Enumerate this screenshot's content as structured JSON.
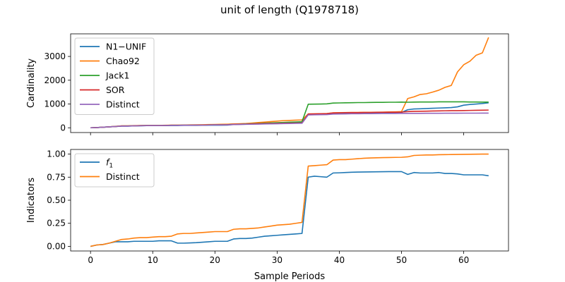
{
  "figure": {
    "suptitle": "unit of length (Q1978718)"
  },
  "colors": {
    "blue": "#1f77b4",
    "orange": "#ff7f0e",
    "green": "#2ca02c",
    "red": "#d62728",
    "purple": "#9467bd"
  },
  "chart_data": [
    {
      "type": "line",
      "title": "",
      "xlabel": "",
      "ylabel": "Cardinality",
      "xlim": [
        -3.2,
        67.2
      ],
      "ylim": [
        -200,
        3950
      ],
      "xticks": [
        0,
        10,
        20,
        30,
        40,
        50,
        60
      ],
      "xtick_labels_visible": false,
      "yticks": [
        0,
        1000,
        2000,
        3000
      ],
      "ytick_labels": [
        "0",
        "1000",
        "2000",
        "3000"
      ],
      "legend": "top-left",
      "grid": false,
      "x": [
        0,
        1,
        2,
        3,
        4,
        5,
        6,
        7,
        8,
        9,
        10,
        11,
        12,
        13,
        14,
        15,
        16,
        17,
        18,
        19,
        20,
        21,
        22,
        23,
        24,
        25,
        26,
        27,
        28,
        29,
        30,
        31,
        32,
        33,
        34,
        35,
        36,
        37,
        38,
        39,
        40,
        41,
        42,
        43,
        44,
        45,
        46,
        47,
        48,
        49,
        50,
        51,
        52,
        53,
        54,
        55,
        56,
        57,
        58,
        59,
        60,
        61,
        62,
        63,
        64
      ],
      "series": [
        {
          "name": "N1−UNIF",
          "color": "#1f77b4",
          "values": [
            0,
            10,
            25,
            40,
            55,
            70,
            70,
            80,
            85,
            90,
            90,
            90,
            92,
            95,
            95,
            100,
            100,
            100,
            105,
            110,
            110,
            110,
            112,
            140,
            145,
            150,
            160,
            170,
            180,
            190,
            200,
            210,
            220,
            230,
            240,
            560,
            565,
            570,
            575,
            610,
            615,
            620,
            625,
            625,
            630,
            630,
            635,
            635,
            640,
            640,
            645,
            760,
            790,
            800,
            810,
            820,
            830,
            840,
            850,
            880,
            950,
            980,
            1000,
            1020,
            1050
          ]
        },
        {
          "name": "Chao92",
          "color": "#ff7f0e",
          "values": [
            0,
            10,
            25,
            40,
            60,
            80,
            80,
            90,
            95,
            100,
            100,
            100,
            105,
            110,
            110,
            115,
            120,
            125,
            130,
            135,
            140,
            145,
            150,
            160,
            170,
            180,
            200,
            220,
            240,
            260,
            280,
            300,
            310,
            320,
            330,
            580,
            585,
            590,
            600,
            630,
            635,
            640,
            645,
            645,
            650,
            650,
            655,
            660,
            665,
            670,
            680,
            1230,
            1300,
            1400,
            1430,
            1500,
            1580,
            1700,
            1780,
            2350,
            2650,
            2800,
            3050,
            3150,
            3800
          ]
        },
        {
          "name": "Jack1",
          "color": "#2ca02c",
          "values": [
            0,
            10,
            25,
            40,
            55,
            75,
            75,
            85,
            90,
            95,
            95,
            95,
            100,
            105,
            105,
            110,
            110,
            115,
            115,
            120,
            125,
            125,
            130,
            145,
            150,
            160,
            170,
            180,
            195,
            205,
            215,
            225,
            235,
            245,
            255,
            990,
            995,
            1000,
            1005,
            1040,
            1045,
            1050,
            1055,
            1060,
            1060,
            1065,
            1070,
            1070,
            1075,
            1075,
            1080,
            1075,
            1080,
            1085,
            1085,
            1085,
            1090,
            1090,
            1090,
            1090,
            1090,
            1085,
            1085,
            1080,
            1080
          ]
        },
        {
          "name": "SOR",
          "color": "#d62728",
          "values": [
            0,
            10,
            25,
            40,
            55,
            75,
            75,
            85,
            90,
            95,
            95,
            95,
            100,
            105,
            105,
            110,
            110,
            115,
            115,
            120,
            125,
            125,
            130,
            145,
            150,
            155,
            160,
            170,
            175,
            180,
            185,
            190,
            195,
            200,
            205,
            580,
            585,
            590,
            595,
            625,
            630,
            635,
            640,
            640,
            645,
            645,
            650,
            650,
            655,
            655,
            660,
            680,
            690,
            695,
            700,
            705,
            710,
            715,
            720,
            720,
            725,
            730,
            735,
            740,
            745
          ]
        },
        {
          "name": "Distinct",
          "color": "#9467bd",
          "values": [
            0,
            10,
            25,
            40,
            55,
            70,
            70,
            80,
            85,
            90,
            90,
            90,
            95,
            100,
            100,
            105,
            105,
            110,
            110,
            115,
            120,
            120,
            125,
            135,
            140,
            145,
            150,
            155,
            160,
            165,
            170,
            175,
            180,
            185,
            190,
            540,
            545,
            550,
            555,
            575,
            580,
            585,
            590,
            590,
            595,
            595,
            598,
            600,
            600,
            602,
            605,
            605,
            607,
            607,
            610,
            610,
            610,
            612,
            612,
            612,
            615,
            615,
            615,
            617,
            617
          ]
        }
      ]
    },
    {
      "type": "line",
      "title": "",
      "xlabel": "Sample Periods",
      "ylabel": "Indicators",
      "xlim": [
        -3.2,
        67.2
      ],
      "ylim": [
        -0.05,
        1.05
      ],
      "xticks": [
        0,
        10,
        20,
        30,
        40,
        50,
        60
      ],
      "xtick_labels": [
        "0",
        "10",
        "20",
        "30",
        "40",
        "50",
        "60"
      ],
      "yticks": [
        0,
        0.25,
        0.5,
        0.75,
        1.0
      ],
      "ytick_labels": [
        "0.00",
        "0.25",
        "0.50",
        "0.75",
        "1.00"
      ],
      "legend": "top-left",
      "grid": false,
      "x": [
        0,
        1,
        2,
        3,
        4,
        5,
        6,
        7,
        8,
        9,
        10,
        11,
        12,
        13,
        14,
        15,
        16,
        17,
        18,
        19,
        20,
        21,
        22,
        23,
        24,
        25,
        26,
        27,
        28,
        29,
        30,
        31,
        32,
        33,
        34,
        35,
        36,
        37,
        38,
        39,
        40,
        41,
        42,
        43,
        44,
        45,
        46,
        47,
        48,
        49,
        50,
        51,
        52,
        53,
        54,
        55,
        56,
        57,
        58,
        59,
        60,
        61,
        62,
        63,
        64
      ],
      "series": [
        {
          "name": "f",
          "name_subscript": "1",
          "color": "#1f77b4",
          "values": [
            0,
            0.015,
            0.02,
            0.035,
            0.05,
            0.05,
            0.05,
            0.055,
            0.055,
            0.055,
            0.055,
            0.06,
            0.06,
            0.06,
            0.035,
            0.035,
            0.037,
            0.04,
            0.045,
            0.05,
            0.055,
            0.055,
            0.055,
            0.08,
            0.085,
            0.085,
            0.09,
            0.1,
            0.11,
            0.115,
            0.12,
            0.125,
            0.13,
            0.135,
            0.14,
            0.75,
            0.76,
            0.755,
            0.75,
            0.795,
            0.797,
            0.8,
            0.803,
            0.805,
            0.806,
            0.807,
            0.808,
            0.809,
            0.81,
            0.81,
            0.81,
            0.78,
            0.8,
            0.795,
            0.795,
            0.795,
            0.8,
            0.79,
            0.79,
            0.785,
            0.775,
            0.775,
            0.775,
            0.775,
            0.765
          ]
        },
        {
          "name": "Distinct",
          "color": "#ff7f0e",
          "values": [
            0,
            0.015,
            0.02,
            0.035,
            0.055,
            0.075,
            0.08,
            0.09,
            0.095,
            0.095,
            0.1,
            0.105,
            0.105,
            0.11,
            0.135,
            0.14,
            0.14,
            0.145,
            0.15,
            0.155,
            0.16,
            0.16,
            0.16,
            0.185,
            0.19,
            0.19,
            0.195,
            0.2,
            0.21,
            0.22,
            0.23,
            0.235,
            0.24,
            0.25,
            0.26,
            0.87,
            0.875,
            0.88,
            0.885,
            0.935,
            0.94,
            0.94,
            0.945,
            0.95,
            0.955,
            0.958,
            0.96,
            0.962,
            0.963,
            0.964,
            0.965,
            0.97,
            0.985,
            0.988,
            0.99,
            0.99,
            0.993,
            0.994,
            0.995,
            0.996,
            0.997,
            0.998,
            0.999,
            1.0,
            1.0
          ]
        }
      ]
    }
  ]
}
